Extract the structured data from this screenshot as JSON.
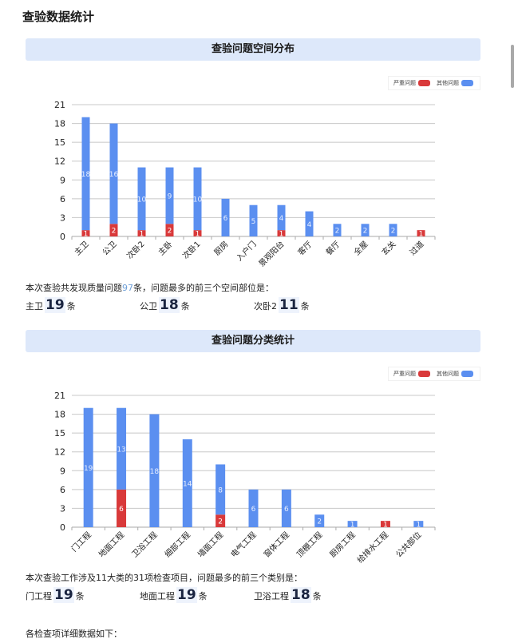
{
  "page": {
    "title": "查验数据统计",
    "detail_label": "各检查项详细数据如下："
  },
  "legend": {
    "severe_label": "严重问题",
    "other_label": "其他问题",
    "severe_color": "#d9393a",
    "other_color": "#5b8ff0"
  },
  "section1": {
    "header": "查验问题空间分布",
    "summary_prefix": "本次查验共发现质量问题",
    "summary_count": "97",
    "summary_suffix": "条，问题最多的前三个空间部位是：",
    "top3": [
      {
        "name": "主卫",
        "count": "19",
        "unit": "条"
      },
      {
        "name": "公卫",
        "count": "18",
        "unit": "条"
      },
      {
        "name": "次卧2",
        "count": "11",
        "unit": "条"
      }
    ]
  },
  "section2": {
    "header": "查验问题分类统计",
    "summary": "本次查验工作涉及11大类的31项检查项目，问题最多的前三个类别是：",
    "top3": [
      {
        "name": "门工程",
        "count": "19",
        "unit": "条"
      },
      {
        "name": "地面工程",
        "count": "19",
        "unit": "条"
      },
      {
        "name": "卫浴工程",
        "count": "18",
        "unit": "条"
      }
    ]
  },
  "chart_data": [
    {
      "type": "bar",
      "stacked": true,
      "title": "查验问题空间分布",
      "xlabel": "",
      "ylabel": "",
      "ylim": [
        0,
        21
      ],
      "yticks": [
        0,
        3,
        6,
        9,
        12,
        15,
        18,
        21
      ],
      "grid": true,
      "legend_position": "top-right",
      "categories": [
        "主卫",
        "公卫",
        "次卧2",
        "主卧",
        "次卧1",
        "厨房",
        "入户门",
        "景观阳台",
        "客厅",
        "餐厅",
        "全屋",
        "玄关",
        "过道"
      ],
      "series": [
        {
          "name": "严重问题",
          "color": "#d9393a",
          "values": [
            1,
            2,
            1,
            2,
            1,
            0,
            0,
            1,
            0,
            0,
            0,
            0,
            1
          ]
        },
        {
          "name": "其他问题",
          "color": "#5b8ff0",
          "values": [
            18,
            16,
            10,
            9,
            10,
            6,
            5,
            4,
            4,
            2,
            2,
            2,
            0
          ]
        }
      ]
    },
    {
      "type": "bar",
      "stacked": true,
      "title": "查验问题分类统计",
      "xlabel": "",
      "ylabel": "",
      "ylim": [
        0,
        21
      ],
      "yticks": [
        0,
        3,
        6,
        9,
        12,
        15,
        18,
        21
      ],
      "grid": true,
      "legend_position": "top-right",
      "categories": [
        "门工程",
        "地面工程",
        "卫浴工程",
        "细部工程",
        "墙面工程",
        "电气工程",
        "窗体工程",
        "顶棚工程",
        "厨房工程",
        "给排水工程",
        "公共部位"
      ],
      "series": [
        {
          "name": "严重问题",
          "color": "#d9393a",
          "values": [
            0,
            6,
            0,
            0,
            2,
            0,
            0,
            0,
            0,
            1,
            0
          ]
        },
        {
          "name": "其他问题",
          "color": "#5b8ff0",
          "values": [
            19,
            13,
            18,
            14,
            8,
            6,
            6,
            2,
            1,
            0,
            1
          ]
        }
      ]
    }
  ]
}
